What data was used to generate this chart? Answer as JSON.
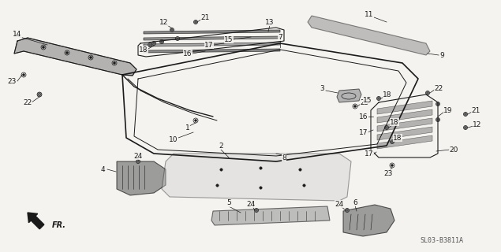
{
  "bg_color": "#f5f3f0",
  "line_color": "#1a1a1a",
  "watermark": "SL03-B3811A",
  "figsize": [
    6.35,
    3.2
  ],
  "dpi": 100
}
